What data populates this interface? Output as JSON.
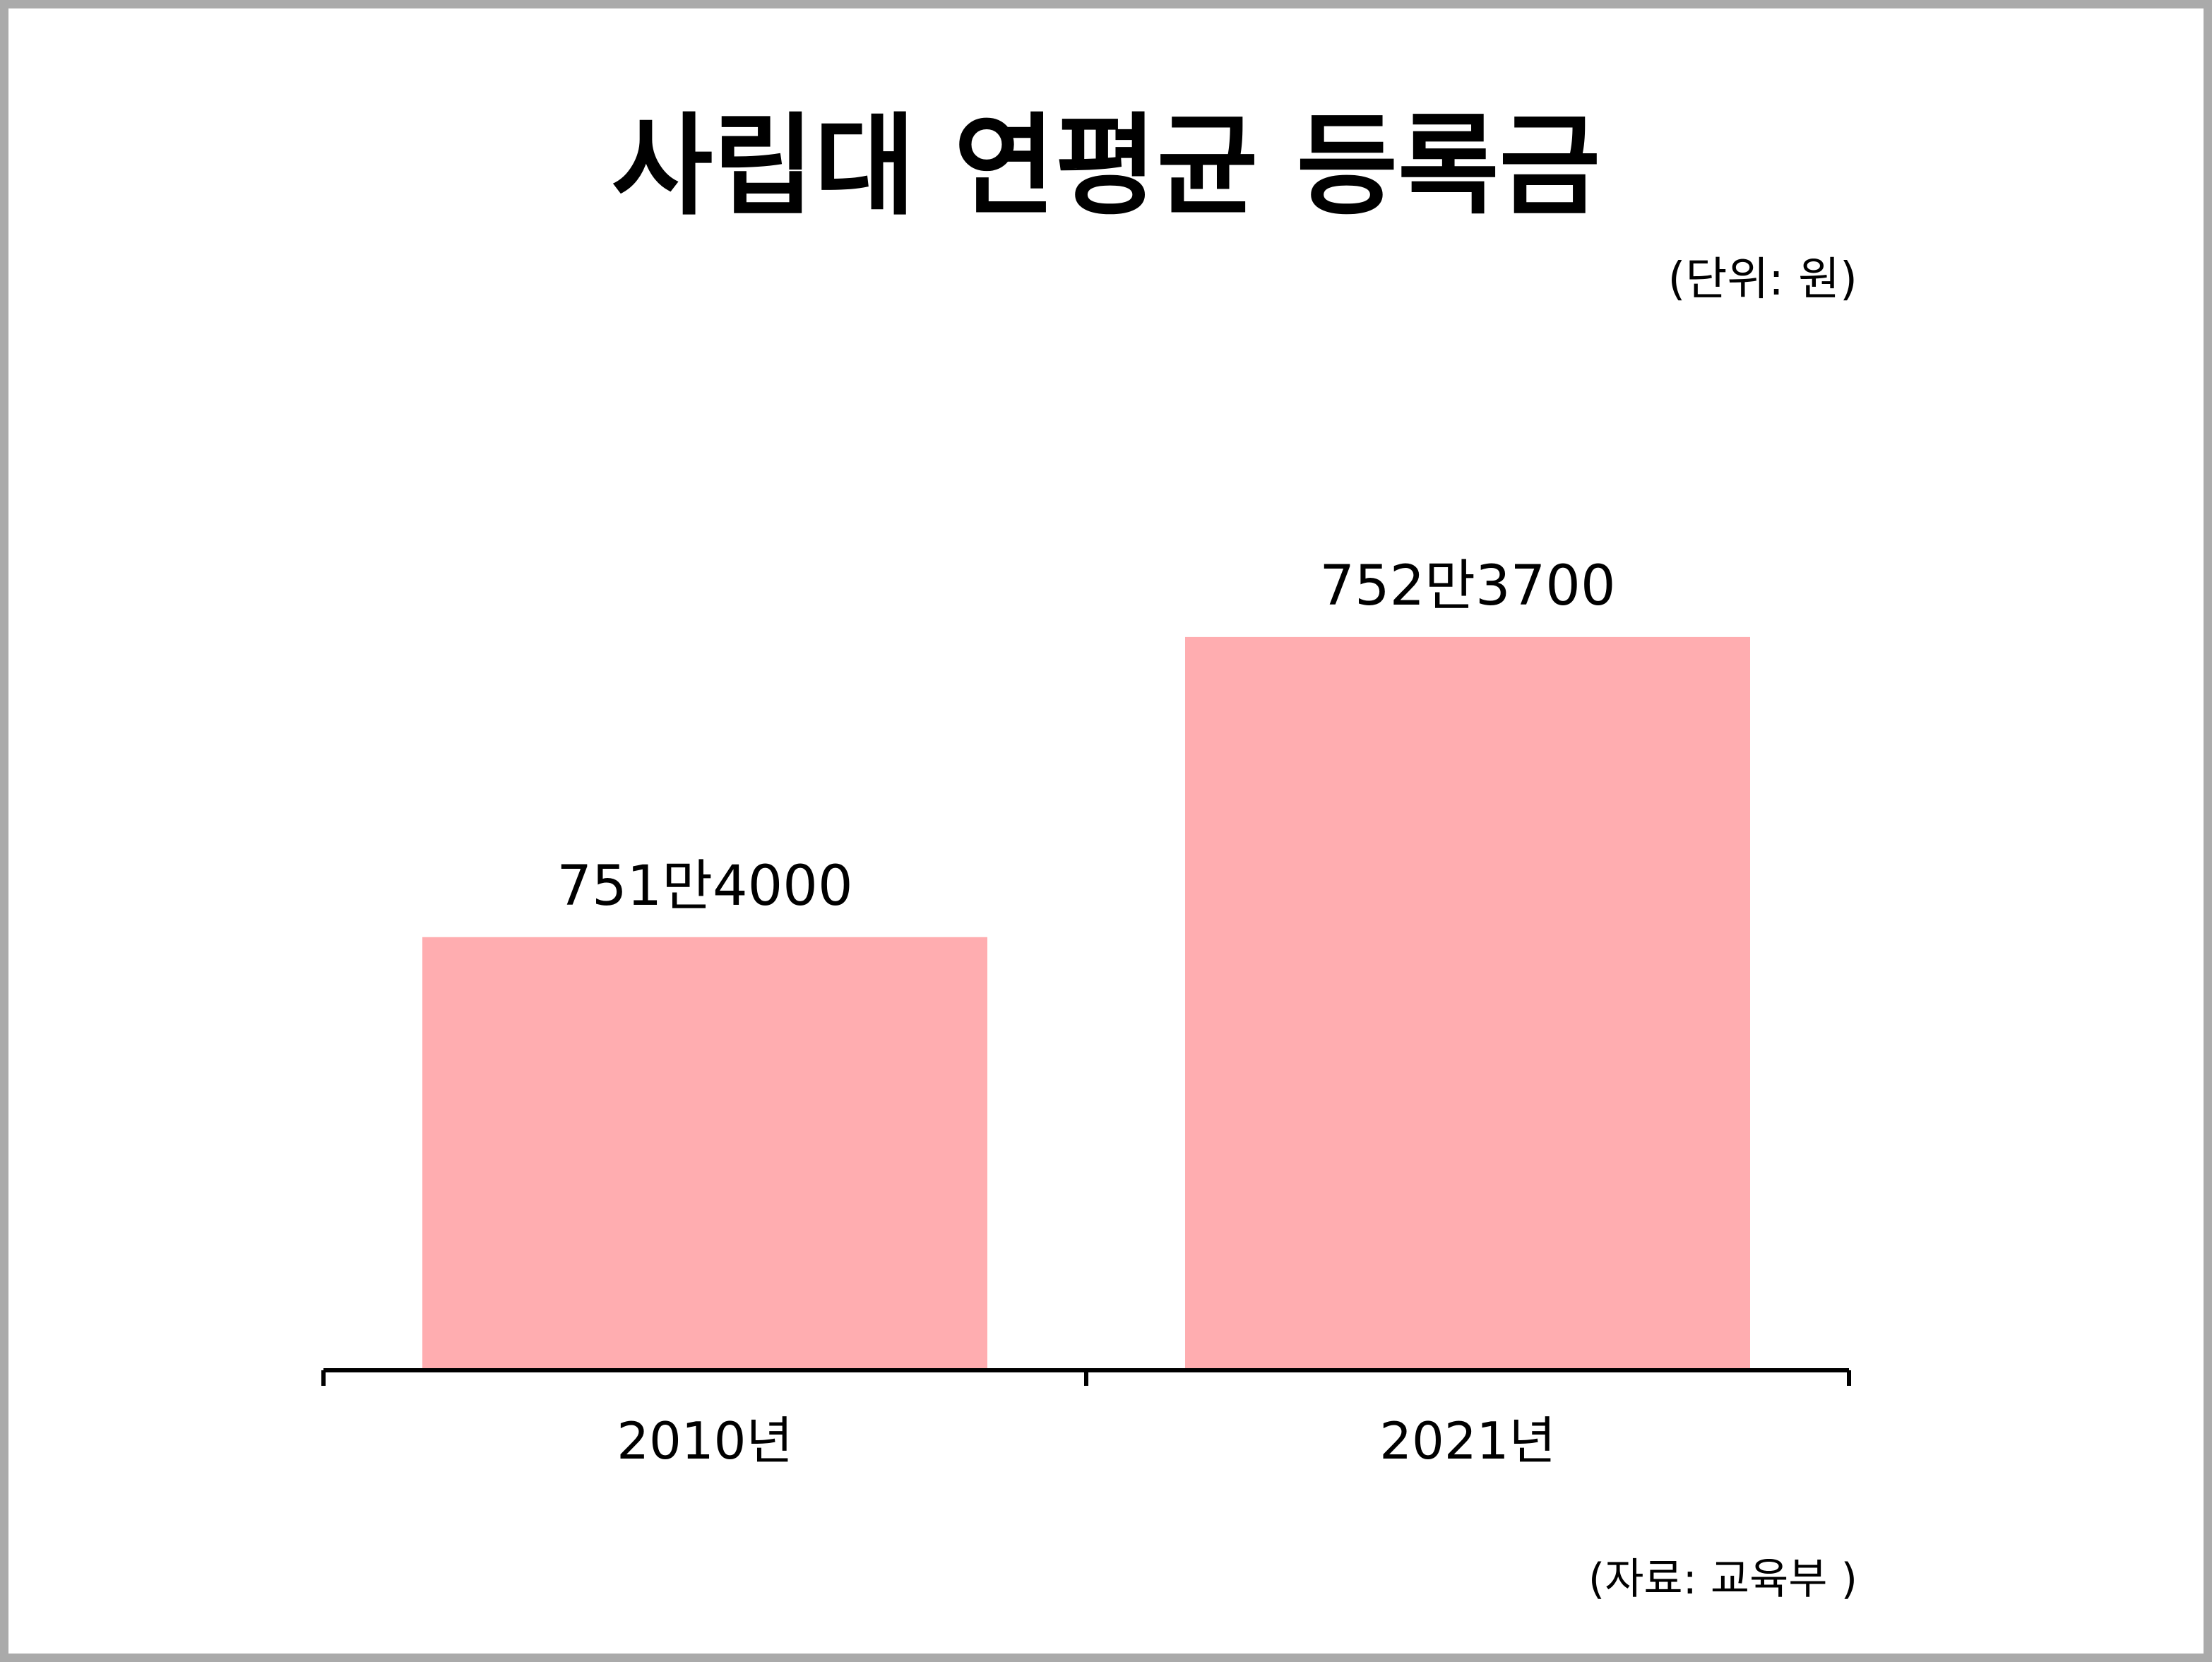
{
  "chart_data": {
    "type": "bar",
    "title": "사립대 연평균 등록금",
    "unit_note": "(단위: 원)",
    "source_note": "(자료: 교육부 )",
    "categories": [
      "2010년",
      "2021년"
    ],
    "series": [
      {
        "values": [
          7514000,
          7523700
        ],
        "value_labels": [
          "751만4000",
          "752만3700"
        ],
        "color": "#ffadb0"
      }
    ],
    "xlabel": "",
    "ylabel": "",
    "ylim": [
      7500000,
      7526300
    ],
    "grid": false,
    "axis_color": "#000000"
  }
}
